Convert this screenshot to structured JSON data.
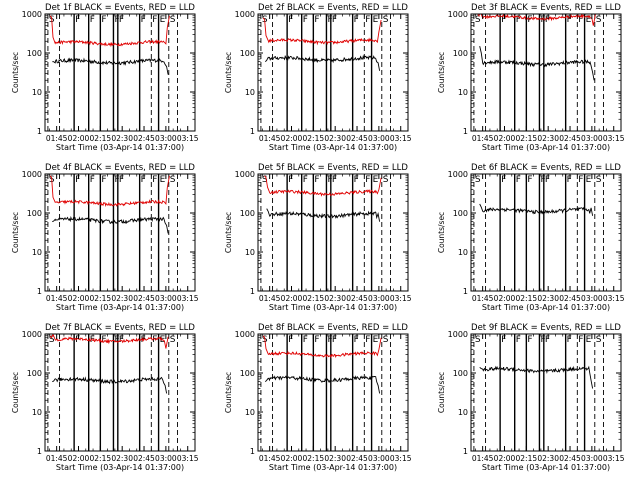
{
  "figure": {
    "colors": {
      "events": "#000000",
      "lld": "#e00000",
      "axis": "#000000",
      "background": "#ffffff"
    },
    "x_ticks": [
      "01:45",
      "02:00",
      "02:15",
      "02:30",
      "02:45",
      "03:00",
      "03:15"
    ],
    "y_ticks": [
      "1",
      "10",
      "100",
      "1000"
    ],
    "ylabel": "Counts/sec",
    "xlabel": "Start Time (03-Apr-14 01:37:00)"
  },
  "chart_data": [
    {
      "type": "line",
      "title": "Det 1f BLACK = Events, RED = LLD",
      "xlabel": "Start Time (03-Apr-14 01:37:00)",
      "ylabel": "Counts/sec",
      "xlim_min": [
        97,
        200
      ],
      "ylim": [
        1,
        1000
      ],
      "yscale": "log",
      "has_lld": true,
      "events_level": 60,
      "events_start": 60,
      "events_end": 28,
      "lld_level": 180,
      "lld_start_spike": 900,
      "lld_end_spike": 900,
      "data_start_min": 102,
      "data_end_min": 182,
      "markers": [
        {
          "label": "S",
          "min": 99,
          "style": "dashed"
        },
        {
          "label": "",
          "min": 107,
          "style": "dashed"
        },
        {
          "label": "F",
          "min": 117,
          "style": "solid"
        },
        {
          "label": "F",
          "min": 127,
          "style": "solid"
        },
        {
          "label": "F",
          "min": 135,
          "style": "solid"
        },
        {
          "label": "F",
          "min": 144,
          "style": "solid"
        },
        {
          "label": "F",
          "min": 147,
          "style": "solid"
        },
        {
          "label": "F",
          "min": 162,
          "style": "solid"
        },
        {
          "label": "F",
          "min": 170,
          "style": "dashed"
        },
        {
          "label": "E",
          "min": 175,
          "style": "solid"
        },
        {
          "label": "S",
          "min": 182,
          "style": "dashed"
        },
        {
          "label": "",
          "min": 188,
          "style": "dashed"
        }
      ]
    },
    {
      "type": "line",
      "title": "Det 2f BLACK = Events, RED = LLD",
      "xlabel": "Start Time (03-Apr-14 01:37:00)",
      "ylabel": "Counts/sec",
      "xlim_min": [
        97,
        200
      ],
      "ylim": [
        1,
        1000
      ],
      "yscale": "log",
      "has_lld": true,
      "events_level": 70,
      "events_start": 60,
      "events_end": 35,
      "lld_level": 200,
      "lld_start_spike": 800,
      "lld_end_spike": 700,
      "data_start_min": 102,
      "data_end_min": 181,
      "markers": [
        {
          "label": "S",
          "min": 99,
          "style": "dashed"
        },
        {
          "label": "",
          "min": 107,
          "style": "dashed"
        },
        {
          "label": "F",
          "min": 117,
          "style": "solid"
        },
        {
          "label": "F",
          "min": 127,
          "style": "solid"
        },
        {
          "label": "F",
          "min": 135,
          "style": "solid"
        },
        {
          "label": "F",
          "min": 144,
          "style": "solid"
        },
        {
          "label": "F",
          "min": 147,
          "style": "solid"
        },
        {
          "label": "F",
          "min": 162,
          "style": "solid"
        },
        {
          "label": "F",
          "min": 170,
          "style": "dashed"
        },
        {
          "label": "E",
          "min": 175,
          "style": "solid"
        },
        {
          "label": "S",
          "min": 182,
          "style": "dashed"
        },
        {
          "label": "",
          "min": 188,
          "style": "dashed"
        }
      ]
    },
    {
      "type": "line",
      "title": "Det 3f BLACK = Events, RED = LLD",
      "xlabel": "Start Time (03-Apr-14 01:37:00)",
      "ylabel": "Counts/sec",
      "xlim_min": [
        97,
        200
      ],
      "ylim": [
        1,
        1000
      ],
      "yscale": "log",
      "has_lld": true,
      "events_level": 55,
      "events_start": 150,
      "events_end": 20,
      "lld_level": 820,
      "lld_start_spike": 1000,
      "lld_end_spike": 1000,
      "data_start_min": 103,
      "data_end_min": 182,
      "markers": [
        {
          "label": "S",
          "min": 99,
          "style": "dashed"
        },
        {
          "label": "",
          "min": 107,
          "style": "dashed"
        },
        {
          "label": "F",
          "min": 117,
          "style": "solid"
        },
        {
          "label": "F",
          "min": 127,
          "style": "solid"
        },
        {
          "label": "F",
          "min": 135,
          "style": "solid"
        },
        {
          "label": "F",
          "min": 144,
          "style": "solid"
        },
        {
          "label": "F",
          "min": 147,
          "style": "solid"
        },
        {
          "label": "F",
          "min": 162,
          "style": "solid"
        },
        {
          "label": "F",
          "min": 170,
          "style": "dashed"
        },
        {
          "label": "E",
          "min": 175,
          "style": "solid"
        },
        {
          "label": "S",
          "min": 182,
          "style": "dashed"
        },
        {
          "label": "",
          "min": 188,
          "style": "dashed"
        }
      ]
    },
    {
      "type": "line",
      "title": "Det 4f BLACK = Events, RED = LLD",
      "xlabel": "Start Time (03-Apr-14 01:37:00)",
      "ylabel": "Counts/sec",
      "xlim_min": [
        97,
        200
      ],
      "ylim": [
        1,
        1000
      ],
      "yscale": "log",
      "has_lld": true,
      "events_level": 65,
      "events_start": 60,
      "events_end": 30,
      "lld_level": 180,
      "lld_start_spike": 900,
      "lld_end_spike": 900,
      "data_start_min": 102,
      "data_end_min": 182,
      "markers": [
        {
          "label": "S",
          "min": 99,
          "style": "dashed"
        },
        {
          "label": "",
          "min": 107,
          "style": "dashed"
        },
        {
          "label": "F",
          "min": 117,
          "style": "solid"
        },
        {
          "label": "F",
          "min": 127,
          "style": "solid"
        },
        {
          "label": "F",
          "min": 135,
          "style": "solid"
        },
        {
          "label": "F",
          "min": 144,
          "style": "solid"
        },
        {
          "label": "F",
          "min": 147,
          "style": "solid"
        },
        {
          "label": "F",
          "min": 162,
          "style": "solid"
        },
        {
          "label": "F",
          "min": 170,
          "style": "dashed"
        },
        {
          "label": "E",
          "min": 175,
          "style": "solid"
        },
        {
          "label": "S",
          "min": 182,
          "style": "dashed"
        },
        {
          "label": "",
          "min": 188,
          "style": "dashed"
        }
      ]
    },
    {
      "type": "line",
      "title": "Det 5f BLACK = Events, RED = LLD",
      "xlabel": "Start Time (03-Apr-14 01:37:00)",
      "ylabel": "Counts/sec",
      "xlim_min": [
        97,
        200
      ],
      "ylim": [
        1,
        1000
      ],
      "yscale": "log",
      "has_lld": true,
      "events_level": 90,
      "events_start": 130,
      "events_end": 60,
      "lld_level": 330,
      "lld_start_spike": 900,
      "lld_end_spike": 800,
      "data_start_min": 103,
      "data_end_min": 181,
      "markers": [
        {
          "label": "S",
          "min": 99,
          "style": "dashed"
        },
        {
          "label": "",
          "min": 107,
          "style": "dashed"
        },
        {
          "label": "F",
          "min": 117,
          "style": "solid"
        },
        {
          "label": "F",
          "min": 127,
          "style": "solid"
        },
        {
          "label": "F",
          "min": 135,
          "style": "solid"
        },
        {
          "label": "F",
          "min": 144,
          "style": "solid"
        },
        {
          "label": "F",
          "min": 147,
          "style": "solid"
        },
        {
          "label": "F",
          "min": 162,
          "style": "solid"
        },
        {
          "label": "F",
          "min": 170,
          "style": "dashed"
        },
        {
          "label": "E",
          "min": 175,
          "style": "solid"
        },
        {
          "label": "S",
          "min": 182,
          "style": "dashed"
        },
        {
          "label": "",
          "min": 188,
          "style": "dashed"
        }
      ]
    },
    {
      "type": "line",
      "title": "Det 6f BLACK = Events, RED = LLD",
      "xlabel": "Start Time (03-Apr-14 01:37:00)",
      "ylabel": "Counts/sec",
      "xlim_min": [
        97,
        200
      ],
      "ylim": [
        1,
        1000
      ],
      "yscale": "log",
      "has_lld": false,
      "events_level": 115,
      "events_start": 170,
      "events_end": 85,
      "lld_level": 0,
      "lld_start_spike": 0,
      "lld_end_spike": 0,
      "data_start_min": 103,
      "data_end_min": 181,
      "markers": [
        {
          "label": "S",
          "min": 99,
          "style": "dashed"
        },
        {
          "label": "",
          "min": 107,
          "style": "dashed"
        },
        {
          "label": "F",
          "min": 117,
          "style": "solid"
        },
        {
          "label": "F",
          "min": 127,
          "style": "solid"
        },
        {
          "label": "F",
          "min": 135,
          "style": "solid"
        },
        {
          "label": "F",
          "min": 144,
          "style": "solid"
        },
        {
          "label": "F",
          "min": 147,
          "style": "solid"
        },
        {
          "label": "F",
          "min": 162,
          "style": "solid"
        },
        {
          "label": "F",
          "min": 170,
          "style": "dashed"
        },
        {
          "label": "E",
          "min": 175,
          "style": "solid"
        },
        {
          "label": "S",
          "min": 182,
          "style": "dashed"
        },
        {
          "label": "",
          "min": 188,
          "style": "dashed"
        }
      ]
    },
    {
      "type": "line",
      "title": "Det 7f BLACK = Events, RED = LLD",
      "xlabel": "Start Time (03-Apr-14 01:37:00)",
      "ylabel": "Counts/sec",
      "xlim_min": [
        97,
        200
      ],
      "ylim": [
        1,
        1000
      ],
      "yscale": "log",
      "has_lld": true,
      "events_level": 65,
      "events_start": 60,
      "events_end": 30,
      "lld_level": 700,
      "lld_start_spike": 900,
      "lld_end_spike": 850,
      "data_start_min": 102,
      "data_end_min": 181,
      "markers": [
        {
          "label": "S",
          "min": 99,
          "style": "dashed"
        },
        {
          "label": "",
          "min": 107,
          "style": "dashed"
        },
        {
          "label": "F",
          "min": 117,
          "style": "solid"
        },
        {
          "label": "F",
          "min": 127,
          "style": "solid"
        },
        {
          "label": "F",
          "min": 135,
          "style": "solid"
        },
        {
          "label": "F",
          "min": 144,
          "style": "solid"
        },
        {
          "label": "F",
          "min": 147,
          "style": "solid"
        },
        {
          "label": "F",
          "min": 162,
          "style": "solid"
        },
        {
          "label": "F",
          "min": 170,
          "style": "dashed"
        },
        {
          "label": "E",
          "min": 175,
          "style": "solid"
        },
        {
          "label": "S",
          "min": 182,
          "style": "dashed"
        },
        {
          "label": "",
          "min": 188,
          "style": "dashed"
        }
      ]
    },
    {
      "type": "line",
      "title": "Det 8f BLACK = Events, RED = LLD",
      "xlabel": "Start Time (03-Apr-14 01:37:00)",
      "ylabel": "Counts/sec",
      "xlim_min": [
        97,
        200
      ],
      "ylim": [
        1,
        1000
      ],
      "yscale": "log",
      "has_lld": true,
      "events_level": 70,
      "events_start": 60,
      "events_end": 30,
      "lld_level": 300,
      "lld_start_spike": 900,
      "lld_end_spike": 800,
      "data_start_min": 102,
      "data_end_min": 181,
      "markers": [
        {
          "label": "S",
          "min": 99,
          "style": "dashed"
        },
        {
          "label": "",
          "min": 107,
          "style": "dashed"
        },
        {
          "label": "F",
          "min": 117,
          "style": "solid"
        },
        {
          "label": "F",
          "min": 127,
          "style": "solid"
        },
        {
          "label": "F",
          "min": 135,
          "style": "solid"
        },
        {
          "label": "F",
          "min": 144,
          "style": "solid"
        },
        {
          "label": "F",
          "min": 147,
          "style": "solid"
        },
        {
          "label": "F",
          "min": 162,
          "style": "solid"
        },
        {
          "label": "F",
          "min": 170,
          "style": "dashed"
        },
        {
          "label": "E",
          "min": 175,
          "style": "solid"
        },
        {
          "label": "S",
          "min": 182,
          "style": "dashed"
        },
        {
          "label": "",
          "min": 188,
          "style": "dashed"
        }
      ]
    },
    {
      "type": "line",
      "title": "Det 9f BLACK = Events, RED = LLD",
      "xlabel": "Start Time (03-Apr-14 01:37:00)",
      "ylabel": "Counts/sec",
      "xlim_min": [
        97,
        200
      ],
      "ylim": [
        1,
        1000
      ],
      "yscale": "log",
      "has_lld": false,
      "events_level": 120,
      "events_start": 140,
      "events_end": 40,
      "lld_level": 0,
      "lld_start_spike": 0,
      "lld_end_spike": 0,
      "data_start_min": 103,
      "data_end_min": 181,
      "markers": [
        {
          "label": "S",
          "min": 99,
          "style": "dashed"
        },
        {
          "label": "",
          "min": 107,
          "style": "dashed"
        },
        {
          "label": "F",
          "min": 117,
          "style": "solid"
        },
        {
          "label": "F",
          "min": 127,
          "style": "solid"
        },
        {
          "label": "F",
          "min": 135,
          "style": "solid"
        },
        {
          "label": "F",
          "min": 144,
          "style": "solid"
        },
        {
          "label": "F",
          "min": 147,
          "style": "solid"
        },
        {
          "label": "F",
          "min": 162,
          "style": "solid"
        },
        {
          "label": "F",
          "min": 170,
          "style": "dashed"
        },
        {
          "label": "E",
          "min": 175,
          "style": "solid"
        },
        {
          "label": "S",
          "min": 182,
          "style": "dashed"
        },
        {
          "label": "",
          "min": 188,
          "style": "dashed"
        }
      ]
    }
  ]
}
